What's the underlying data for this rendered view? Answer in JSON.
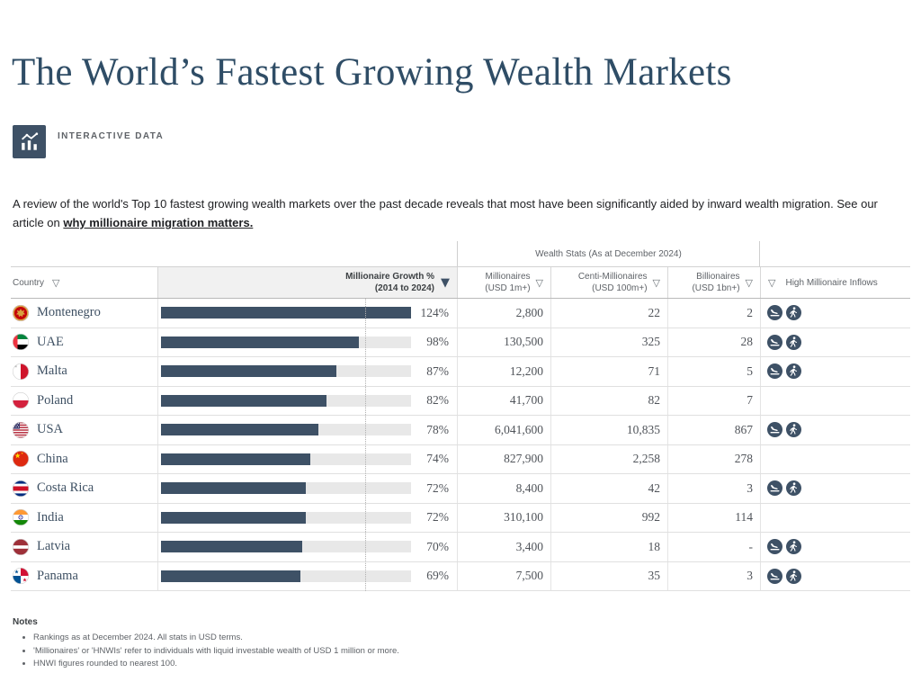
{
  "header": {
    "title": "The World’s Fastest Growing Wealth Markets",
    "tag_label": "INTERACTIVE DATA"
  },
  "intro": {
    "text": "A review of the world's Top 10 fastest growing wealth markets over the past decade reveals that most have been significantly aided by inward wealth migration. See our article on ",
    "link_text": "why millionaire migration matters."
  },
  "icons": {
    "sort": "▽",
    "sort_active": "▼"
  },
  "colors": {
    "accent": "#3e5166",
    "bar": "#3e5166",
    "bar_track": "#e8e8e8",
    "title_text": "#2f4d66",
    "reference_line": "#b0b0b0"
  },
  "table": {
    "group_header": "Wealth Stats (As at December 2024)",
    "columns": {
      "country": "Country",
      "growth_line1": "Millionaire Growth %",
      "growth_line2": "(2014 to 2024)",
      "millionaires_line1": "Millionaires",
      "millionaires_line2": "(USD 1m+)",
      "centi_line1": "Centi-Millionaires",
      "centi_line2": "(USD 100m+)",
      "billionaires_line1": "Billionaires",
      "billionaires_line2": "(USD 1bn+)",
      "inflows": "High Millionaire Inflows"
    },
    "scale_max": 124,
    "reference_line_pct": 100,
    "rows": [
      {
        "country": "Montenegro",
        "flag": "me",
        "growth_pct": 124,
        "growth_label": "124%",
        "millionaires": "2,800",
        "centi": "22",
        "billionaires": "2",
        "inflows": true
      },
      {
        "country": "UAE",
        "flag": "ae",
        "growth_pct": 98,
        "growth_label": "98%",
        "millionaires": "130,500",
        "centi": "325",
        "billionaires": "28",
        "inflows": true
      },
      {
        "country": "Malta",
        "flag": "mt",
        "growth_pct": 87,
        "growth_label": "87%",
        "millionaires": "12,200",
        "centi": "71",
        "billionaires": "5",
        "inflows": true
      },
      {
        "country": "Poland",
        "flag": "pl",
        "growth_pct": 82,
        "growth_label": "82%",
        "millionaires": "41,700",
        "centi": "82",
        "billionaires": "7",
        "inflows": false
      },
      {
        "country": "USA",
        "flag": "us",
        "growth_pct": 78,
        "growth_label": "78%",
        "millionaires": "6,041,600",
        "centi": "10,835",
        "billionaires": "867",
        "inflows": true
      },
      {
        "country": "China",
        "flag": "cn",
        "growth_pct": 74,
        "growth_label": "74%",
        "millionaires": "827,900",
        "centi": "2,258",
        "billionaires": "278",
        "inflows": false
      },
      {
        "country": "Costa Rica",
        "flag": "cr",
        "growth_pct": 72,
        "growth_label": "72%",
        "millionaires": "8,400",
        "centi": "42",
        "billionaires": "3",
        "inflows": true
      },
      {
        "country": "India",
        "flag": "in",
        "growth_pct": 72,
        "growth_label": "72%",
        "millionaires": "310,100",
        "centi": "992",
        "billionaires": "114",
        "inflows": false
      },
      {
        "country": "Latvia",
        "flag": "lv",
        "growth_pct": 70,
        "growth_label": "70%",
        "millionaires": "3,400",
        "centi": "18",
        "billionaires": "-",
        "inflows": true
      },
      {
        "country": "Panama",
        "flag": "pa",
        "growth_pct": 69,
        "growth_label": "69%",
        "millionaires": "7,500",
        "centi": "35",
        "billionaires": "3",
        "inflows": true
      }
    ]
  },
  "notes": {
    "heading": "Notes",
    "items": [
      "Rankings as at December 2024. All stats in USD terms.",
      "'Millionaires' or 'HNWIs' refer to individuals with liquid investable wealth of USD 1 million or more.",
      "HNWI figures rounded to nearest 100."
    ]
  },
  "chart_data": {
    "type": "bar",
    "title": "The World’s Fastest Growing Wealth Markets",
    "subtitle": "Wealth Stats (As at December 2024)",
    "xlabel": "Millionaire Growth % (2014 to 2024)",
    "ylabel": "Country",
    "orientation": "horizontal",
    "xlim": [
      0,
      124
    ],
    "reference_line_x": 100,
    "grid": false,
    "categories": [
      "Montenegro",
      "UAE",
      "Malta",
      "Poland",
      "USA",
      "China",
      "Costa Rica",
      "India",
      "Latvia",
      "Panama"
    ],
    "values": [
      124,
      98,
      87,
      82,
      78,
      74,
      72,
      72,
      70,
      69
    ],
    "value_unit": "percent",
    "series": [
      {
        "name": "Millionaire Growth % (2014 to 2024)",
        "values": [
          124,
          98,
          87,
          82,
          78,
          74,
          72,
          72,
          70,
          69
        ]
      },
      {
        "name": "Millionaires (USD 1m+)",
        "values": [
          2800,
          130500,
          12200,
          41700,
          6041600,
          827900,
          8400,
          310100,
          3400,
          7500
        ]
      },
      {
        "name": "Centi-Millionaires (USD 100m+)",
        "values": [
          22,
          325,
          71,
          82,
          10835,
          2258,
          42,
          992,
          18,
          35
        ]
      },
      {
        "name": "Billionaires (USD 1bn+)",
        "values": [
          2,
          28,
          5,
          7,
          867,
          278,
          3,
          114,
          null,
          3
        ]
      },
      {
        "name": "High Millionaire Inflows",
        "values": [
          true,
          true,
          true,
          false,
          true,
          false,
          true,
          false,
          true,
          true
        ]
      }
    ]
  }
}
